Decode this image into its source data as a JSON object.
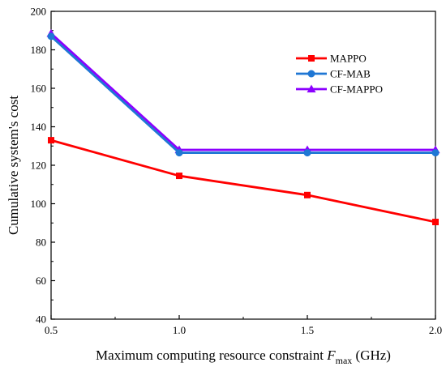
{
  "chart_data": {
    "type": "line",
    "title": "",
    "xlabel": {
      "prefix": "Maximum computing resource constraint ",
      "symbol": "F",
      "subscript": "max",
      "suffix": " (GHz)"
    },
    "ylabel": "Cumulative system's cost",
    "x": [
      0.5,
      1.0,
      1.5,
      2.0
    ],
    "xlim": [
      0.5,
      2.0
    ],
    "ylim": [
      40,
      200
    ],
    "xticks": [
      "0.5",
      "1.0",
      "1.5",
      "2.0"
    ],
    "yticks": [
      "40",
      "60",
      "80",
      "100",
      "120",
      "140",
      "160",
      "180",
      "200"
    ],
    "grid": false,
    "legend_position": "top-right",
    "series": [
      {
        "name": "MAPPO",
        "values": [
          133,
          114.5,
          104.5,
          90.5
        ],
        "color": "#ff0000",
        "marker": "square"
      },
      {
        "name": "CF-MAB",
        "values": [
          187,
          126.5,
          126.5,
          126.5
        ],
        "color": "#1f77d4",
        "marker": "circle"
      },
      {
        "name": "CF-MAPPO",
        "values": [
          188.5,
          128,
          128,
          128
        ],
        "color": "#8b00ff",
        "marker": "triangle"
      }
    ]
  }
}
